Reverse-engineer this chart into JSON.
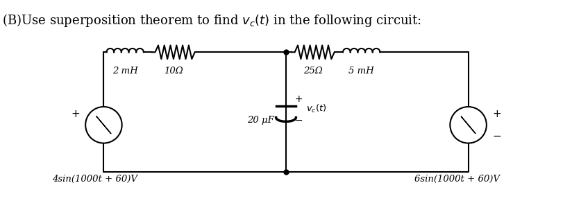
{
  "title": "(B)Use superposition theorem to find $v_c(t)$ in the following circuit:",
  "title_fontsize": 13,
  "background_color": "#ffffff",
  "fig_width": 8.24,
  "fig_height": 2.9,
  "dpi": 100,
  "label_2mH": "2 mH",
  "label_10ohm": "10Ω",
  "label_25ohm": "25Ω",
  "label_5mH": "5 mH",
  "label_20uF": "20 μF",
  "label_vc": "$v_c(t)$",
  "label_src1": "4sin(1000t + 60)V",
  "label_src2": "6sin(1000t + 60)V",
  "line_color": "#000000",
  "component_color": "#000000",
  "text_color": "#000000"
}
